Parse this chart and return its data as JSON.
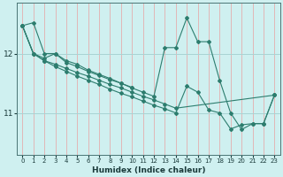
{
  "xlabel": "Humidex (Indice chaleur)",
  "bg_color": "#cff0f0",
  "line_color": "#2d7d6e",
  "grid_color_v": "#e8a0a0",
  "grid_color_h": "#a8d4d4",
  "xlim": [
    -0.5,
    23.5
  ],
  "ylim": [
    10.3,
    12.85
  ],
  "yticks": [
    11,
    12
  ],
  "xticks": [
    0,
    1,
    2,
    3,
    4,
    5,
    6,
    7,
    8,
    9,
    10,
    11,
    12,
    13,
    14,
    15,
    16,
    17,
    18,
    19,
    20,
    21,
    22,
    23
  ],
  "lines": [
    {
      "x": [
        0,
        1,
        2,
        3,
        4,
        5,
        6,
        7,
        8,
        9,
        10,
        11,
        12,
        13,
        14,
        15,
        16,
        17,
        18,
        19,
        20,
        21,
        22,
        23
      ],
      "y": [
        12.47,
        12.52,
        12.0,
        12.0,
        11.88,
        11.82,
        11.72,
        11.65,
        11.58,
        11.5,
        11.42,
        11.35,
        11.28,
        12.1,
        12.1,
        12.6,
        12.2,
        12.2,
        11.55,
        11.0,
        10.72,
        10.82,
        10.82,
        11.3
      ]
    },
    {
      "x": [
        0,
        1,
        2,
        3,
        4,
        5,
        6,
        7,
        8,
        9,
        10
      ],
      "y": [
        12.47,
        12.0,
        11.92,
        12.0,
        11.85,
        11.78,
        11.7,
        11.63,
        11.56,
        11.5,
        11.43
      ]
    },
    {
      "x": [
        0,
        1,
        2,
        3,
        4,
        5,
        6,
        7,
        8,
        9,
        10,
        11,
        12,
        13,
        14,
        23
      ],
      "y": [
        12.47,
        12.0,
        11.88,
        11.82,
        11.75,
        11.68,
        11.62,
        11.55,
        11.48,
        11.42,
        11.35,
        11.28,
        11.22,
        11.15,
        11.08,
        11.3
      ]
    },
    {
      "x": [
        0,
        1,
        2,
        3,
        4,
        5,
        6,
        7,
        8,
        9,
        10,
        11,
        12,
        13,
        14,
        15,
        16,
        17,
        18,
        19,
        20,
        21,
        22,
        23
      ],
      "y": [
        12.47,
        12.0,
        11.88,
        11.78,
        11.7,
        11.62,
        11.55,
        11.48,
        11.4,
        11.33,
        11.27,
        11.2,
        11.13,
        11.07,
        11.0,
        11.45,
        11.35,
        11.05,
        11.0,
        10.73,
        10.8,
        10.82,
        10.82,
        11.3
      ]
    }
  ]
}
